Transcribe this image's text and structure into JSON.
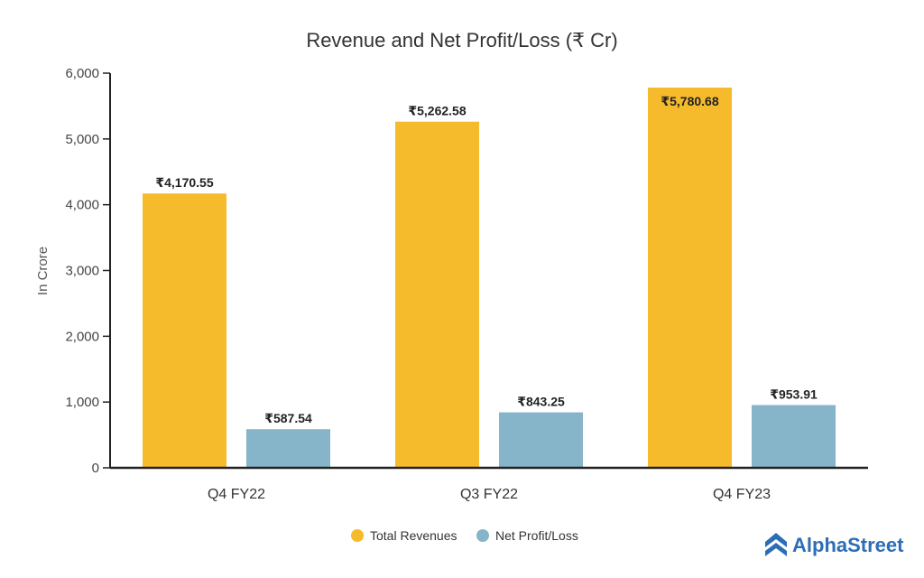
{
  "chart_data": {
    "type": "bar",
    "title": "Revenue and Net Profit/Loss (₹ Cr)",
    "ylabel": "In Crore",
    "xlabel": "",
    "ylim": [
      0,
      6000
    ],
    "yticks": [
      "0",
      "1,000",
      "2,000",
      "3,000",
      "4,000",
      "5,000",
      "6,000"
    ],
    "ytick_values": [
      0,
      1000,
      2000,
      3000,
      4000,
      5000,
      6000
    ],
    "categories": [
      "Q4 FY22",
      "Q3 FY22",
      "Q4 FY23"
    ],
    "series": [
      {
        "name": "Total Revenues",
        "color": "#F6BB2C",
        "values": [
          4170.55,
          5262.58,
          5780.68
        ],
        "labels": [
          "₹4,170.55",
          "₹5,262.58",
          "₹5,780.68"
        ]
      },
      {
        "name": "Net Profit/Loss",
        "color": "#86B4C8",
        "values": [
          587.54,
          843.25,
          953.91
        ],
        "labels": [
          "₹587.54",
          "₹843.25",
          "₹953.91"
        ]
      }
    ],
    "grid": false,
    "legend_position": "bottom-center"
  },
  "branding": {
    "name": "AlphaStreet",
    "color": "#2D6DB5",
    "icon": "alphastreet-logo-icon"
  }
}
